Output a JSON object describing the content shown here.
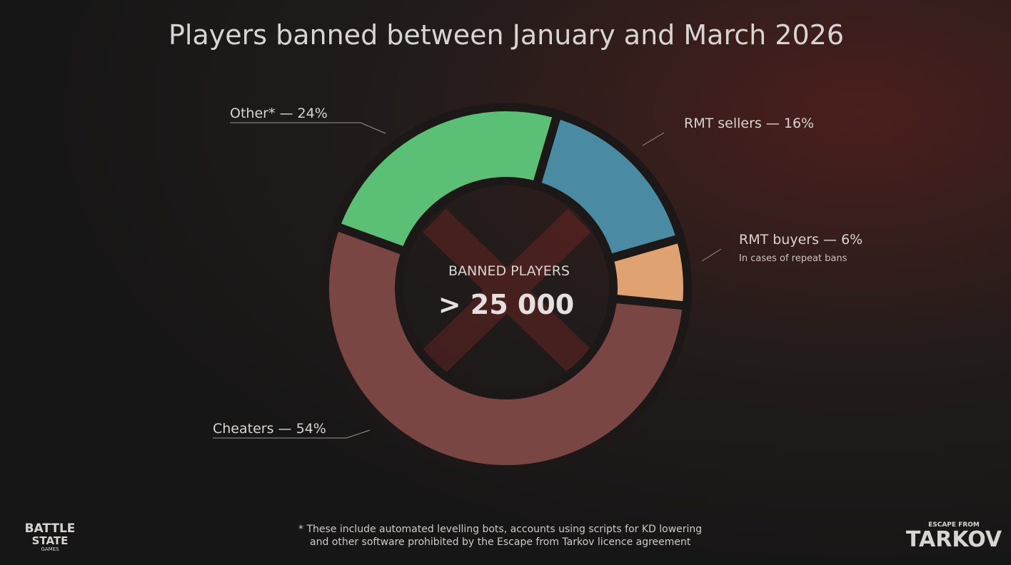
{
  "chart_data": {
    "type": "donut",
    "title": "Players banned between January and March 2026",
    "categories": [
      "Other* — 24%",
      "RMT sellers — 16%",
      "RMT buyers — 6%",
      "Cheaters — 54%"
    ],
    "values": [
      24,
      16,
      6,
      54
    ],
    "colors": [
      "#5bbf75",
      "#4a8aa2",
      "#e1a272",
      "#7a4644"
    ],
    "annotations": [
      null,
      null,
      "In cases of repeat bans",
      null
    ],
    "center_label": "BANNED PLAYERS",
    "center_value": "> 25 000",
    "footnote": [
      "*  These include automated levelling bots, accounts using scripts for KD lowering",
      "and other software prohibited by the Escape from Tarkov licence agreement"
    ]
  },
  "logos": {
    "left": [
      "BATTLE",
      "STATE",
      "GAMES"
    ],
    "right": [
      "ESCAPE FROM",
      "TARKOV"
    ]
  }
}
